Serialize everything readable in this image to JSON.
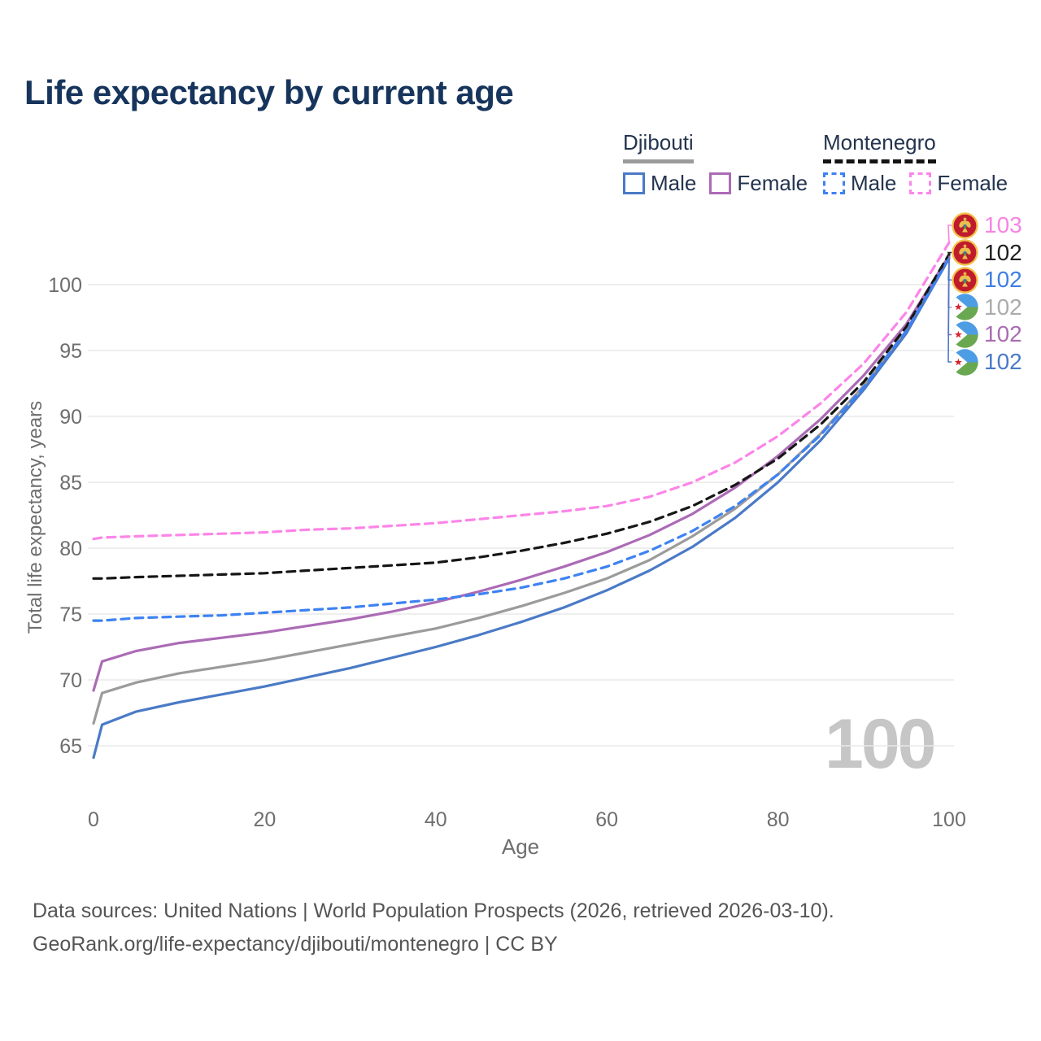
{
  "title": "Life expectancy by current age",
  "legend": {
    "groups": [
      {
        "country": "Djibouti",
        "line_style": "solid",
        "underline_color": "#9b9b9b",
        "items": [
          {
            "label": "Male",
            "color": "#4a7ac6"
          },
          {
            "label": "Female",
            "color": "#ab6bb5"
          }
        ]
      },
      {
        "country": "Montenegro",
        "line_style": "dashed",
        "underline_color": "#141414",
        "items": [
          {
            "label": "Male",
            "color": "#3d82f2"
          },
          {
            "label": "Female",
            "color": "#fc85e8"
          }
        ]
      }
    ]
  },
  "watermark": "100",
  "footer": {
    "line1": "Data sources: United Nations | World Population Prospects (2026, retrieved 2026-03-10).",
    "line2": "GeoRank.org/life-expectancy/djibouti/montenegro | CC BY"
  },
  "chart_data": {
    "type": "line",
    "title": "Life expectancy by current age",
    "xlabel": "Age",
    "ylabel": "Total life expectancy, years",
    "x_ticks": [
      0,
      20,
      40,
      60,
      80,
      100
    ],
    "y_ticks": [
      65,
      70,
      75,
      80,
      85,
      90,
      95,
      100
    ],
    "xlim": [
      0,
      100
    ],
    "ylim": [
      63,
      104
    ],
    "grid": "horizontal",
    "ages": [
      0,
      1,
      5,
      10,
      15,
      20,
      25,
      30,
      35,
      40,
      45,
      50,
      55,
      60,
      65,
      70,
      75,
      80,
      85,
      90,
      95,
      100
    ],
    "series": [
      {
        "name": "Djibouti",
        "country": "Djibouti",
        "sex": "both",
        "color": "#9b9b9b",
        "dash": false,
        "values": [
          66.7,
          69.0,
          69.8,
          70.5,
          71.0,
          71.5,
          72.1,
          72.7,
          73.3,
          73.9,
          74.7,
          75.6,
          76.6,
          77.7,
          79.1,
          80.9,
          83.0,
          85.6,
          88.7,
          92.3,
          96.5,
          102.1
        ]
      },
      {
        "name": "Djibouti Male",
        "country": "Djibouti",
        "sex": "male",
        "color": "#4a7ac6",
        "dash": false,
        "values": [
          64.1,
          66.6,
          67.6,
          68.3,
          68.9,
          69.5,
          70.2,
          70.9,
          71.7,
          72.5,
          73.4,
          74.4,
          75.5,
          76.8,
          78.3,
          80.1,
          82.3,
          85.0,
          88.2,
          92.0,
          96.3,
          102.0
        ]
      },
      {
        "name": "Djibouti Female",
        "country": "Djibouti",
        "sex": "female",
        "color": "#ab6bb5",
        "dash": false,
        "values": [
          69.2,
          71.4,
          72.2,
          72.8,
          73.2,
          73.6,
          74.1,
          74.6,
          75.2,
          75.9,
          76.7,
          77.6,
          78.6,
          79.7,
          81.0,
          82.6,
          84.6,
          87.0,
          89.8,
          93.1,
          97.0,
          102.2
        ]
      },
      {
        "name": "Montenegro",
        "country": "Montenegro",
        "sex": "both",
        "color": "#161616",
        "dash": true,
        "values": [
          77.7,
          77.7,
          77.8,
          77.9,
          78.0,
          78.1,
          78.3,
          78.5,
          78.7,
          78.9,
          79.3,
          79.8,
          80.4,
          81.1,
          82.0,
          83.2,
          84.8,
          86.8,
          89.4,
          92.6,
          96.8,
          102.3
        ]
      },
      {
        "name": "Montenegro Male",
        "country": "Montenegro",
        "sex": "male",
        "color": "#3d82f2",
        "dash": true,
        "values": [
          74.5,
          74.5,
          74.7,
          74.8,
          74.9,
          75.1,
          75.3,
          75.5,
          75.8,
          76.1,
          76.5,
          77.0,
          77.7,
          78.6,
          79.8,
          81.3,
          83.2,
          85.6,
          88.6,
          92.2,
          96.5,
          102.0
        ]
      },
      {
        "name": "Montenegro Female",
        "country": "Montenegro",
        "sex": "female",
        "color": "#fc85e8",
        "dash": true,
        "values": [
          80.7,
          80.8,
          80.9,
          81.0,
          81.1,
          81.2,
          81.4,
          81.5,
          81.7,
          81.9,
          82.2,
          82.5,
          82.8,
          83.2,
          83.9,
          85.0,
          86.5,
          88.5,
          91.0,
          94.0,
          97.9,
          103.2
        ]
      }
    ],
    "end_labels": [
      {
        "value": "103",
        "flag": "montenegro",
        "color": "#f783e3",
        "series": "Montenegro Female"
      },
      {
        "value": "102",
        "flag": "montenegro",
        "color": "#1f1f1f",
        "series": "Montenegro"
      },
      {
        "value": "102",
        "flag": "montenegro",
        "color": "#3e7ee2",
        "series": "Montenegro Male"
      },
      {
        "value": "102",
        "flag": "djibouti",
        "color": "#ababab",
        "series": "Djibouti"
      },
      {
        "value": "102",
        "flag": "djibouti",
        "color": "#a96cb2",
        "series": "Djibouti Female"
      },
      {
        "value": "102",
        "flag": "djibouti",
        "color": "#4b79c8",
        "series": "Djibouti Male"
      }
    ]
  }
}
